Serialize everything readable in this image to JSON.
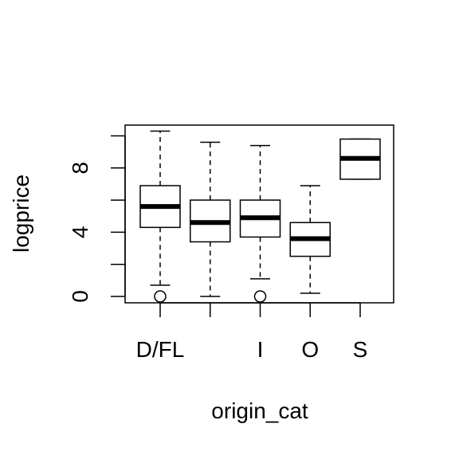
{
  "chart_data": {
    "type": "boxplot",
    "title": "",
    "xlabel": "origin_cat",
    "ylabel": "logprice",
    "categories": [
      "D/FL",
      "",
      "I",
      "O",
      "S"
    ],
    "yticks": [
      0,
      4,
      8
    ],
    "ylim": [
      -0.4,
      10.7
    ],
    "grid": false,
    "legend": "none",
    "boxes": [
      {
        "category": "D/FL",
        "whisker_low": 0.7,
        "q1": 4.3,
        "median": 5.6,
        "q3": 6.9,
        "whisker_high": 10.3,
        "outliers": [
          0.0
        ]
      },
      {
        "category": "",
        "whisker_low": 0.0,
        "q1": 3.4,
        "median": 4.6,
        "q3": 6.0,
        "whisker_high": 9.6,
        "outliers": []
      },
      {
        "category": "I",
        "whisker_low": 1.1,
        "q1": 3.7,
        "median": 4.9,
        "q3": 6.0,
        "whisker_high": 9.4,
        "outliers": [
          0.0
        ]
      },
      {
        "category": "O",
        "whisker_low": 0.2,
        "q1": 2.5,
        "median": 3.6,
        "q3": 4.6,
        "whisker_high": 6.9,
        "outliers": []
      },
      {
        "category": "S",
        "whisker_low": 7.3,
        "q1": 7.3,
        "median": 8.6,
        "q3": 9.8,
        "whisker_high": 9.8,
        "outliers": []
      }
    ]
  }
}
